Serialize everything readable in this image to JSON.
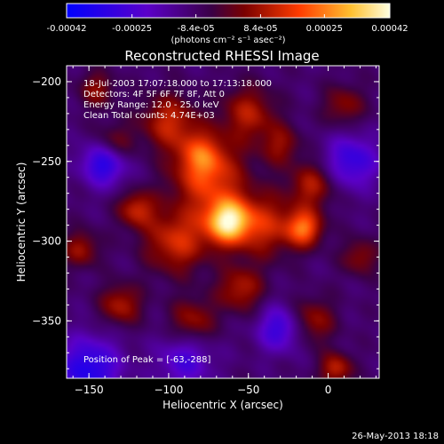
{
  "colorbar": {
    "tick_labels": [
      "-0.00042",
      "-0.00025",
      "-8.4e-05",
      "8.4e-05",
      "0.00025",
      "0.00042"
    ],
    "tick_values": [
      -0.00042,
      -0.00025,
      -8.4e-05,
      8.4e-05,
      0.00025,
      0.00042
    ],
    "range": [
      -0.00042,
      0.00042
    ],
    "unit_label": "(photons cm⁻² s⁻¹ asec⁻²)",
    "colors": [
      "#0000ff",
      "#5500cc",
      "#550055",
      "#aa0000",
      "#ff5500",
      "#ffcc33",
      "#ffffdd"
    ]
  },
  "chart_data": {
    "type": "heatmap",
    "title": "Reconstructed RHESSI Image",
    "xlabel": "Heliocentric X (arcsec)",
    "ylabel": "Heliocentric Y (arcsec)",
    "x_ticks": [
      -150,
      -100,
      -50,
      0
    ],
    "y_ticks": [
      -200,
      -250,
      -300,
      -350
    ],
    "xlim": [
      -164,
      32
    ],
    "ylim": [
      -386,
      -190
    ],
    "info_lines": [
      "18-Jul-2003 17:07:18.000 to 17:13:18.000",
      "Detectors: 4F 5F 6F 7F 8F, Att 0",
      "Energy Range: 12.0 - 25.0 keV",
      "Clean     Total counts: 4.74E+03"
    ],
    "peak_label": "Position of Peak = [-63,-288]",
    "peak": {
      "x": -63,
      "y": -288
    },
    "blobs": [
      {
        "x": -63,
        "y": -288,
        "amp": 1.0,
        "s": 10
      },
      {
        "x": -75,
        "y": -260,
        "amp": 0.6,
        "s": 16
      },
      {
        "x": -95,
        "y": -300,
        "amp": 0.55,
        "s": 14
      },
      {
        "x": -40,
        "y": -290,
        "amp": 0.5,
        "s": 14
      },
      {
        "x": -15,
        "y": -292,
        "amp": 0.7,
        "s": 8
      },
      {
        "x": -10,
        "y": -265,
        "amp": 0.45,
        "s": 10
      },
      {
        "x": -120,
        "y": -280,
        "amp": 0.5,
        "s": 8
      },
      {
        "x": -135,
        "y": -240,
        "amp": 0.45,
        "s": 9
      },
      {
        "x": -100,
        "y": -225,
        "amp": 0.5,
        "s": 12
      },
      {
        "x": -50,
        "y": -220,
        "amp": 0.45,
        "s": 12
      },
      {
        "x": -80,
        "y": -245,
        "amp": 0.4,
        "s": 10
      },
      {
        "x": -55,
        "y": -330,
        "amp": 0.45,
        "s": 10
      },
      {
        "x": -85,
        "y": -350,
        "amp": 0.4,
        "s": 10
      },
      {
        "x": -130,
        "y": -340,
        "amp": 0.45,
        "s": 9
      },
      {
        "x": -155,
        "y": -305,
        "amp": 0.4,
        "s": 8
      },
      {
        "x": -10,
        "y": -350,
        "amp": 0.4,
        "s": 10
      },
      {
        "x": 5,
        "y": -380,
        "amp": 0.5,
        "s": 7
      },
      {
        "x": 20,
        "y": -310,
        "amp": 0.35,
        "s": 8
      },
      {
        "x": -30,
        "y": -240,
        "amp": 0.35,
        "s": 9
      },
      {
        "x": -145,
        "y": -205,
        "amp": 0.35,
        "s": 8
      },
      {
        "x": 10,
        "y": -215,
        "amp": 0.35,
        "s": 9
      },
      {
        "x": -150,
        "y": -380,
        "amp": -0.6,
        "s": 14
      },
      {
        "x": -140,
        "y": -250,
        "amp": -0.7,
        "s": 10
      },
      {
        "x": -30,
        "y": -355,
        "amp": -0.5,
        "s": 10
      },
      {
        "x": 15,
        "y": -250,
        "amp": -0.5,
        "s": 12
      },
      {
        "x": -90,
        "y": -375,
        "amp": -0.4,
        "s": 12
      }
    ]
  },
  "timestamp": "26-May-2013 18:18"
}
